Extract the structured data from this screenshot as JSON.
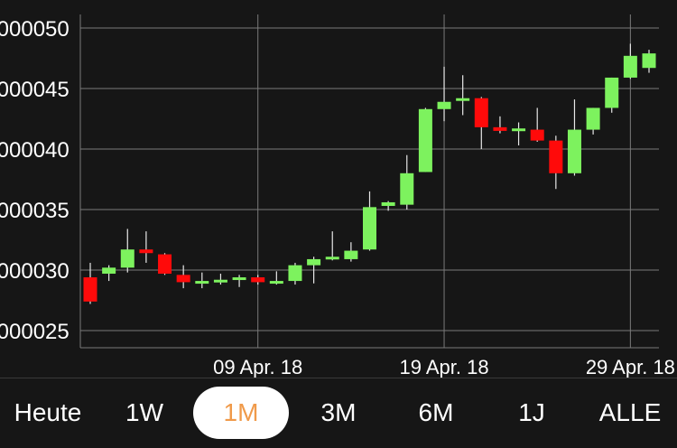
{
  "chart_data": {
    "type": "candlestick",
    "title": "",
    "xlabel": "",
    "ylabel": "",
    "y_ticks": [
      ",000025",
      ",000030",
      ",000035",
      ",000040",
      ",000045",
      ",000050"
    ],
    "y_tick_values": [
      2.5e-05,
      3e-05,
      3.5e-05,
      4e-05,
      4.5e-05,
      5e-05
    ],
    "ylim": [
      2.35e-05,
      5.12e-05
    ],
    "x_ticks": [
      "09 Apr. 18",
      "19 Apr. 18",
      "29 Apr. 18"
    ],
    "x_tick_days": [
      9,
      19,
      29
    ],
    "x_first_day": -0.4,
    "x_last_day": 30.4,
    "grid": true,
    "candles": [
      {
        "day": 0,
        "open": 2.94e-05,
        "close": 2.74e-05,
        "high": 3.06e-05,
        "low": 2.72e-05
      },
      {
        "day": 1,
        "open": 2.97e-05,
        "close": 3.02e-05,
        "high": 3.04e-05,
        "low": 2.91e-05
      },
      {
        "day": 2,
        "open": 3.02e-05,
        "close": 3.17e-05,
        "high": 3.34e-05,
        "low": 2.98e-05
      },
      {
        "day": 3,
        "open": 3.17e-05,
        "close": 3.14e-05,
        "high": 3.32e-05,
        "low": 3.06e-05
      },
      {
        "day": 4,
        "open": 3.13e-05,
        "close": 2.97e-05,
        "high": 3.14e-05,
        "low": 2.96e-05
      },
      {
        "day": 5,
        "open": 2.96e-05,
        "close": 2.9e-05,
        "high": 3.04e-05,
        "low": 2.85e-05
      },
      {
        "day": 6,
        "open": 2.91e-05,
        "close": 2.91e-05,
        "high": 2.98e-05,
        "low": 2.85e-05
      },
      {
        "day": 7,
        "open": 2.9e-05,
        "close": 2.92e-05,
        "high": 2.97e-05,
        "low": 2.88e-05
      },
      {
        "day": 8,
        "open": 2.92e-05,
        "close": 2.94e-05,
        "high": 2.96e-05,
        "low": 2.86e-05
      },
      {
        "day": 9,
        "open": 2.94e-05,
        "close": 2.9e-05,
        "high": 2.96e-05,
        "low": 2.88e-05
      },
      {
        "day": 10,
        "open": 2.9e-05,
        "close": 2.91e-05,
        "high": 2.99e-05,
        "low": 2.88e-05
      },
      {
        "day": 11,
        "open": 2.91e-05,
        "close": 3.04e-05,
        "high": 3.06e-05,
        "low": 2.88e-05
      },
      {
        "day": 12,
        "open": 3.04e-05,
        "close": 3.09e-05,
        "high": 3.11e-05,
        "low": 2.89e-05
      },
      {
        "day": 13,
        "open": 3.09e-05,
        "close": 3.11e-05,
        "high": 3.32e-05,
        "low": 3.08e-05
      },
      {
        "day": 14,
        "open": 3.09e-05,
        "close": 3.16e-05,
        "high": 3.23e-05,
        "low": 3.07e-05
      },
      {
        "day": 15,
        "open": 3.17e-05,
        "close": 3.52e-05,
        "high": 3.65e-05,
        "low": 3.16e-05
      },
      {
        "day": 16,
        "open": 3.53e-05,
        "close": 3.56e-05,
        "high": 3.57e-05,
        "low": 3.49e-05
      },
      {
        "day": 17,
        "open": 3.54e-05,
        "close": 3.8e-05,
        "high": 3.95e-05,
        "low": 3.5e-05
      },
      {
        "day": 18,
        "open": 3.81e-05,
        "close": 4.33e-05,
        "high": 4.34e-05,
        "low": 3.81e-05
      },
      {
        "day": 19,
        "open": 4.33e-05,
        "close": 4.39e-05,
        "high": 4.68e-05,
        "low": 4.23e-05
      },
      {
        "day": 20,
        "open": 4.41e-05,
        "close": 4.42e-05,
        "high": 4.61e-05,
        "low": 4.28e-05
      },
      {
        "day": 21,
        "open": 4.42e-05,
        "close": 4.18e-05,
        "high": 4.43e-05,
        "low": 4e-05
      },
      {
        "day": 22,
        "open": 4.18e-05,
        "close": 4.15e-05,
        "high": 4.27e-05,
        "low": 4.13e-05
      },
      {
        "day": 23,
        "open": 4.16e-05,
        "close": 4.17e-05,
        "high": 4.22e-05,
        "low": 4.03e-05
      },
      {
        "day": 24,
        "open": 4.16e-05,
        "close": 4.07e-05,
        "high": 4.34e-05,
        "low": 4.06e-05
      },
      {
        "day": 25,
        "open": 4.07e-05,
        "close": 3.8e-05,
        "high": 4.11e-05,
        "low": 3.67e-05
      },
      {
        "day": 26,
        "open": 3.8e-05,
        "close": 4.16e-05,
        "high": 4.41e-05,
        "low": 3.78e-05
      },
      {
        "day": 27,
        "open": 4.16e-05,
        "close": 4.34e-05,
        "high": 4.34e-05,
        "low": 4.12e-05
      },
      {
        "day": 28,
        "open": 4.34e-05,
        "close": 4.59e-05,
        "high": 4.59e-05,
        "low": 4.3e-05
      },
      {
        "day": 29,
        "open": 4.59e-05,
        "close": 4.77e-05,
        "high": 4.87e-05,
        "low": 4.58e-05
      },
      {
        "day": 30,
        "open": 4.67e-05,
        "close": 4.79e-05,
        "high": 4.82e-05,
        "low": 4.63e-05
      }
    ],
    "colors": {
      "up": "#7df25e",
      "down": "#ff0a0a",
      "wick": "#e8e8e8",
      "grid": "#7a7a7a",
      "tick_text": "#ffffff",
      "background": "#161616"
    }
  },
  "range_selector": {
    "buttons": [
      {
        "label": "Heute",
        "active": false
      },
      {
        "label": "1W",
        "active": false
      },
      {
        "label": "1M",
        "active": true
      },
      {
        "label": "3M",
        "active": false
      },
      {
        "label": "6M",
        "active": false
      },
      {
        "label": "1J",
        "active": false
      },
      {
        "label": "ALLE",
        "active": false
      }
    ],
    "active_text_color": "#f09a4a"
  }
}
